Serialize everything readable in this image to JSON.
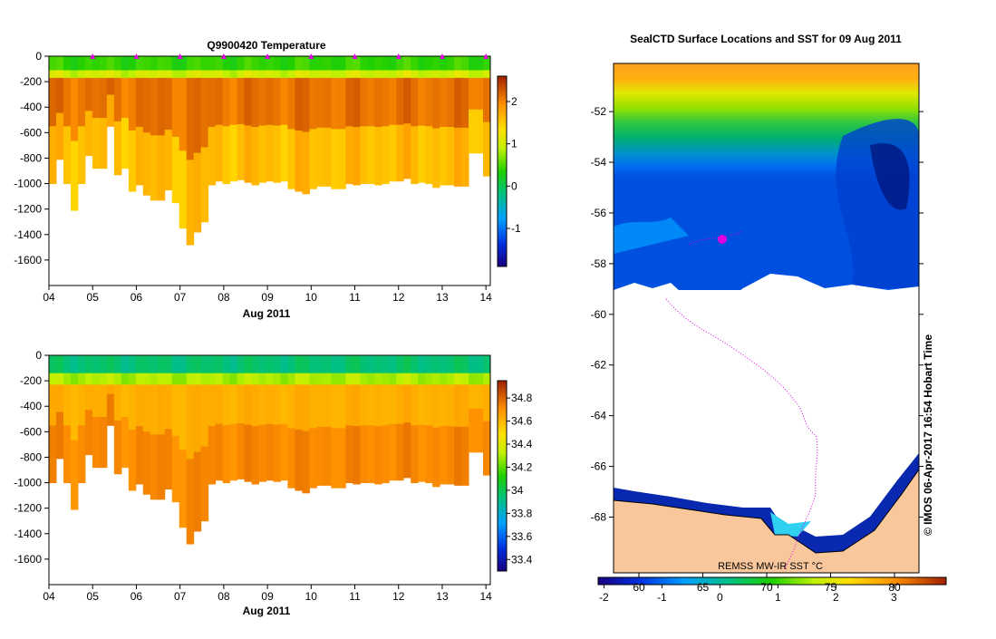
{
  "chart_data": [
    {
      "type": "heatmap",
      "title": "Q9900420  Temperature",
      "xlabel": "Aug 2011",
      "ylabel": "",
      "xlim": [
        4,
        14.1
      ],
      "ylim": [
        -1800,
        0
      ],
      "x_ticks": [
        "04",
        "05",
        "06",
        "07",
        "08",
        "09",
        "10",
        "11",
        "12",
        "13",
        "14"
      ],
      "y_ticks": [
        "0",
        "-200",
        "-400",
        "-600",
        "-800",
        "-1000",
        "-1200",
        "-1400",
        "-1600"
      ],
      "y_tick_values": [
        0,
        -200,
        -400,
        -600,
        -800,
        -1000,
        -1200,
        -1400,
        -1600
      ],
      "colorbar": {
        "min": -1.9,
        "max": 2.6,
        "ticks": [
          "2",
          "1",
          "0",
          "-1"
        ],
        "tick_values": [
          2,
          1,
          0,
          -1
        ]
      },
      "markers_days": [
        5,
        6,
        7,
        8,
        9,
        10,
        11,
        12,
        13,
        14
      ],
      "profile_depths": [
        1000,
        810,
        1000,
        1210,
        1000,
        780,
        880,
        880,
        550,
        930,
        880,
        1060,
        1010,
        1090,
        1130,
        1130,
        1050,
        1150,
        1350,
        1480,
        1380,
        1300,
        1010,
        980,
        1000,
        980,
        970,
        990,
        1010,
        990,
        980,
        990,
        980,
        1040,
        1060,
        1080,
        1040,
        1020,
        1020,
        1040,
        1040,
        1000,
        1010,
        1000,
        1000,
        1010,
        1000,
        980,
        980,
        960,
        1000,
        990,
        1000,
        1030,
        1010,
        1010,
        1020,
        1020,
        760,
        760,
        940
      ],
      "values": {
        "surface": 0.4,
        "thermocline_top": 1.0,
        "core": 2.1,
        "deep": 1.6
      }
    },
    {
      "type": "heatmap",
      "title": "",
      "xlabel": "Aug 2011",
      "ylabel": "",
      "xlim": [
        4,
        14.1
      ],
      "ylim": [
        -1800,
        0
      ],
      "x_ticks": [
        "04",
        "05",
        "06",
        "07",
        "08",
        "09",
        "10",
        "11",
        "12",
        "13",
        "14"
      ],
      "y_ticks": [
        "0",
        "-200",
        "-400",
        "-600",
        "-800",
        "-1000",
        "-1200",
        "-1400",
        "-1600"
      ],
      "y_tick_values": [
        0,
        -200,
        -400,
        -600,
        -800,
        -1000,
        -1200,
        -1400,
        -1600
      ],
      "colorbar": {
        "min": 33.3,
        "max": 34.95,
        "ticks": [
          "34.8",
          "34.6",
          "34.4",
          "34.2",
          "34",
          "33.8",
          "33.6",
          "33.4"
        ],
        "tick_values": [
          34.8,
          34.6,
          34.4,
          34.2,
          34,
          33.8,
          33.6,
          33.4
        ]
      },
      "values": {
        "surface": 33.95,
        "halocline": 34.3,
        "core": 34.62,
        "deep": 34.72
      }
    },
    {
      "type": "heatmap",
      "title": "SealCTD Surface Locations and SST for 09 Aug 2011",
      "xlabel": "",
      "ylabel": "",
      "lon_ticks": [
        "60",
        "65",
        "70",
        "75",
        "80"
      ],
      "lon_tick_values": [
        60,
        65,
        70,
        75,
        80
      ],
      "lat_ticks": [
        "-52",
        "-54",
        "-56",
        "-58",
        "-60",
        "-62",
        "-64",
        "-66",
        "-68"
      ],
      "lat_tick_values": [
        -52,
        -54,
        -56,
        -58,
        -60,
        -62,
        -64,
        -66,
        -68
      ],
      "lat_range": [
        -70.2,
        -50.1
      ],
      "colorbar": {
        "min": -2.1,
        "max": 3.9,
        "ticks": [
          "-2",
          "-1",
          "0",
          "1",
          "2",
          "3"
        ],
        "tick_values": [
          -2,
          -1,
          0,
          1,
          2,
          3
        ]
      },
      "annotation": "REMSS MW-IR SST °C",
      "side_label": "© IMOS 06-Apr-2017 16:54 Hobart Time"
    }
  ],
  "colors": {
    "land": "#f8c89c",
    "track": "#e000e0",
    "axis": "#000000",
    "marker": "#e000e0"
  }
}
